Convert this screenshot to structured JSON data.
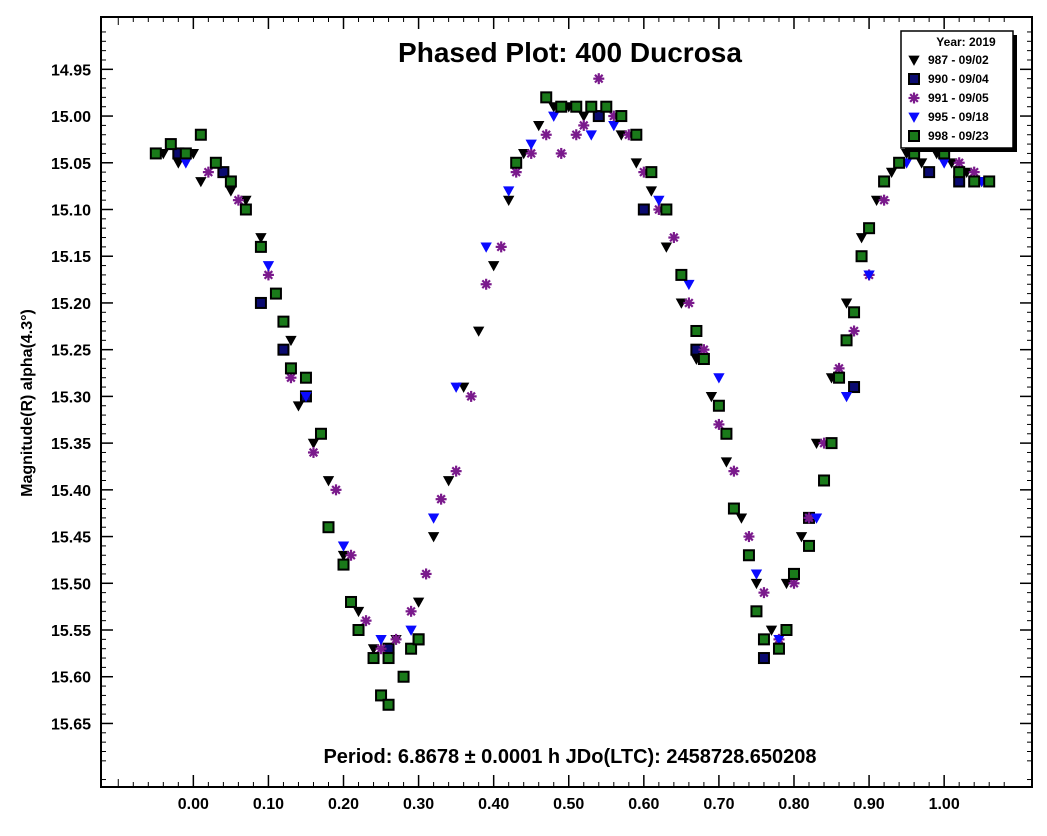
{
  "chart_data": {
    "type": "scatter",
    "title": "Phased Plot: 400 Ducrosa",
    "ylabel": "Magnitude(R) alpha(4.3°)",
    "xlabel": "",
    "footer": "Period: 6.8678 ± 0.0001 h  JDo(LTC): 2458728.650208",
    "xlim": [
      -0.123,
      1.117
    ],
    "ylim": [
      15.718,
      14.894
    ],
    "y_inverted": true,
    "x_ticks": [
      "0.00",
      "0.10",
      "0.20",
      "0.30",
      "0.40",
      "0.50",
      "0.60",
      "0.70",
      "0.80",
      "0.90",
      "1.00"
    ],
    "x_tick_values": [
      0,
      0.1,
      0.2,
      0.3,
      0.4,
      0.5,
      0.6,
      0.7,
      0.8,
      0.9,
      1.0
    ],
    "y_ticks": [
      "14.95",
      "15.00",
      "15.05",
      "15.10",
      "15.15",
      "15.20",
      "15.25",
      "15.30",
      "15.35",
      "15.40",
      "15.45",
      "15.50",
      "15.55",
      "15.60",
      "15.65"
    ],
    "y_tick_values": [
      14.95,
      15.0,
      15.05,
      15.1,
      15.15,
      15.2,
      15.25,
      15.3,
      15.35,
      15.4,
      15.45,
      15.5,
      15.55,
      15.6,
      15.65
    ],
    "legend": {
      "title": "Year: 2019",
      "placement": "top-right"
    },
    "series": [
      {
        "name": "987 - 09/02",
        "marker": "triangle-down",
        "color": "#000000",
        "points": [
          [
            -0.04,
            15.04
          ],
          [
            -0.03,
            15.03
          ],
          [
            -0.02,
            15.05
          ],
          [
            0.0,
            15.04
          ],
          [
            0.01,
            15.07
          ],
          [
            0.03,
            15.05
          ],
          [
            0.05,
            15.08
          ],
          [
            0.07,
            15.09
          ],
          [
            0.09,
            15.13
          ],
          [
            0.11,
            15.19
          ],
          [
            0.13,
            15.24
          ],
          [
            0.14,
            15.31
          ],
          [
            0.16,
            15.35
          ],
          [
            0.18,
            15.39
          ],
          [
            0.2,
            15.47
          ],
          [
            0.22,
            15.53
          ],
          [
            0.24,
            15.57
          ],
          [
            0.26,
            15.58
          ],
          [
            0.27,
            15.56
          ],
          [
            0.3,
            15.52
          ],
          [
            0.32,
            15.45
          ],
          [
            0.34,
            15.39
          ],
          [
            0.36,
            15.29
          ],
          [
            0.38,
            15.23
          ],
          [
            0.4,
            15.16
          ],
          [
            0.42,
            15.09
          ],
          [
            0.44,
            15.04
          ],
          [
            0.46,
            15.01
          ],
          [
            0.48,
            14.99
          ],
          [
            0.5,
            14.99
          ],
          [
            0.52,
            15.0
          ],
          [
            0.55,
            14.99
          ],
          [
            0.57,
            15.02
          ],
          [
            0.59,
            15.05
          ],
          [
            0.61,
            15.08
          ],
          [
            0.63,
            15.14
          ],
          [
            0.65,
            15.2
          ],
          [
            0.67,
            15.26
          ],
          [
            0.69,
            15.3
          ],
          [
            0.71,
            15.37
          ],
          [
            0.73,
            15.43
          ],
          [
            0.75,
            15.5
          ],
          [
            0.77,
            15.55
          ],
          [
            0.79,
            15.5
          ],
          [
            0.81,
            15.45
          ],
          [
            0.83,
            15.35
          ],
          [
            0.85,
            15.28
          ],
          [
            0.87,
            15.2
          ],
          [
            0.89,
            15.13
          ],
          [
            0.91,
            15.09
          ],
          [
            0.93,
            15.06
          ],
          [
            0.95,
            15.04
          ],
          [
            0.97,
            15.05
          ],
          [
            0.99,
            15.04
          ],
          [
            1.01,
            15.05
          ],
          [
            1.03,
            15.06
          ],
          [
            1.05,
            15.07
          ]
        ]
      },
      {
        "name": "990 - 09/04",
        "marker": "square",
        "color": "#0a0a70",
        "points": [
          [
            -0.02,
            15.04
          ],
          [
            0.04,
            15.06
          ],
          [
            0.09,
            15.2
          ],
          [
            0.12,
            15.25
          ],
          [
            0.15,
            15.3
          ],
          [
            0.26,
            15.57
          ],
          [
            0.3,
            15.56
          ],
          [
            0.54,
            15.0
          ],
          [
            0.6,
            15.1
          ],
          [
            0.67,
            15.25
          ],
          [
            0.76,
            15.58
          ],
          [
            0.8,
            15.49
          ],
          [
            0.82,
            15.43
          ],
          [
            0.88,
            15.29
          ],
          [
            0.98,
            15.06
          ],
          [
            1.02,
            15.07
          ]
        ]
      },
      {
        "name": "991 - 09/05",
        "marker": "asterisk",
        "color": "#7a1a8c",
        "points": [
          [
            0.02,
            15.06
          ],
          [
            0.06,
            15.09
          ],
          [
            0.1,
            15.17
          ],
          [
            0.13,
            15.28
          ],
          [
            0.16,
            15.36
          ],
          [
            0.19,
            15.4
          ],
          [
            0.21,
            15.47
          ],
          [
            0.23,
            15.54
          ],
          [
            0.25,
            15.57
          ],
          [
            0.27,
            15.56
          ],
          [
            0.29,
            15.53
          ],
          [
            0.31,
            15.49
          ],
          [
            0.33,
            15.41
          ],
          [
            0.35,
            15.38
          ],
          [
            0.37,
            15.3
          ],
          [
            0.39,
            15.18
          ],
          [
            0.41,
            15.14
          ],
          [
            0.43,
            15.06
          ],
          [
            0.45,
            15.04
          ],
          [
            0.47,
            15.02
          ],
          [
            0.49,
            15.04
          ],
          [
            0.51,
            15.02
          ],
          [
            0.52,
            15.01
          ],
          [
            0.54,
            14.96
          ],
          [
            0.56,
            15.0
          ],
          [
            0.58,
            15.02
          ],
          [
            0.6,
            15.06
          ],
          [
            0.62,
            15.1
          ],
          [
            0.64,
            15.13
          ],
          [
            0.66,
            15.2
          ],
          [
            0.68,
            15.25
          ],
          [
            0.7,
            15.33
          ],
          [
            0.72,
            15.38
          ],
          [
            0.74,
            15.45
          ],
          [
            0.76,
            15.51
          ],
          [
            0.78,
            15.56
          ],
          [
            0.8,
            15.5
          ],
          [
            0.82,
            15.43
          ],
          [
            0.84,
            15.35
          ],
          [
            0.86,
            15.27
          ],
          [
            0.88,
            15.23
          ],
          [
            0.9,
            15.17
          ],
          [
            0.92,
            15.09
          ],
          [
            0.94,
            15.05
          ],
          [
            0.96,
            15.04
          ],
          [
            0.98,
            15.03
          ],
          [
            1.0,
            15.04
          ],
          [
            1.02,
            15.05
          ],
          [
            1.04,
            15.06
          ]
        ]
      },
      {
        "name": "995 - 09/18",
        "marker": "triangle-down",
        "color": "#0a0aff",
        "points": [
          [
            -0.01,
            15.05
          ],
          [
            0.05,
            15.07
          ],
          [
            0.1,
            15.16
          ],
          [
            0.15,
            15.3
          ],
          [
            0.2,
            15.46
          ],
          [
            0.25,
            15.56
          ],
          [
            0.29,
            15.55
          ],
          [
            0.32,
            15.43
          ],
          [
            0.35,
            15.29
          ],
          [
            0.39,
            15.14
          ],
          [
            0.42,
            15.08
          ],
          [
            0.45,
            15.03
          ],
          [
            0.48,
            15.0
          ],
          [
            0.53,
            15.02
          ],
          [
            0.56,
            15.01
          ],
          [
            0.62,
            15.09
          ],
          [
            0.66,
            15.18
          ],
          [
            0.7,
            15.28
          ],
          [
            0.75,
            15.49
          ],
          [
            0.78,
            15.56
          ],
          [
            0.83,
            15.43
          ],
          [
            0.87,
            15.3
          ],
          [
            0.9,
            15.17
          ],
          [
            0.95,
            15.05
          ],
          [
            1.0,
            15.05
          ],
          [
            1.05,
            15.07
          ]
        ]
      },
      {
        "name": "998 - 09/23",
        "marker": "square",
        "color": "#1a7a1a",
        "points": [
          [
            -0.05,
            15.04
          ],
          [
            -0.03,
            15.03
          ],
          [
            -0.01,
            15.04
          ],
          [
            0.01,
            15.02
          ],
          [
            0.03,
            15.05
          ],
          [
            0.05,
            15.07
          ],
          [
            0.07,
            15.1
          ],
          [
            0.09,
            15.14
          ],
          [
            0.11,
            15.19
          ],
          [
            0.12,
            15.22
          ],
          [
            0.13,
            15.27
          ],
          [
            0.15,
            15.28
          ],
          [
            0.17,
            15.34
          ],
          [
            0.18,
            15.44
          ],
          [
            0.2,
            15.48
          ],
          [
            0.21,
            15.52
          ],
          [
            0.22,
            15.55
          ],
          [
            0.24,
            15.58
          ],
          [
            0.25,
            15.62
          ],
          [
            0.26,
            15.58
          ],
          [
            0.26,
            15.63
          ],
          [
            0.28,
            15.6
          ],
          [
            0.29,
            15.57
          ],
          [
            0.3,
            15.56
          ],
          [
            0.43,
            15.05
          ],
          [
            0.47,
            14.98
          ],
          [
            0.49,
            14.99
          ],
          [
            0.51,
            14.99
          ],
          [
            0.53,
            14.99
          ],
          [
            0.55,
            14.99
          ],
          [
            0.57,
            15.0
          ],
          [
            0.59,
            15.02
          ],
          [
            0.61,
            15.06
          ],
          [
            0.63,
            15.1
          ],
          [
            0.65,
            15.17
          ],
          [
            0.67,
            15.23
          ],
          [
            0.68,
            15.26
          ],
          [
            0.7,
            15.31
          ],
          [
            0.71,
            15.34
          ],
          [
            0.72,
            15.42
          ],
          [
            0.74,
            15.47
          ],
          [
            0.75,
            15.53
          ],
          [
            0.76,
            15.56
          ],
          [
            0.78,
            15.57
          ],
          [
            0.79,
            15.55
          ],
          [
            0.8,
            15.49
          ],
          [
            0.82,
            15.46
          ],
          [
            0.84,
            15.39
          ],
          [
            0.85,
            15.35
          ],
          [
            0.86,
            15.28
          ],
          [
            0.87,
            15.24
          ],
          [
            0.88,
            15.21
          ],
          [
            0.89,
            15.15
          ],
          [
            0.9,
            15.12
          ],
          [
            0.92,
            15.07
          ],
          [
            0.94,
            15.05
          ],
          [
            0.96,
            15.04
          ],
          [
            0.98,
            15.03
          ],
          [
            1.0,
            15.04
          ],
          [
            1.02,
            15.06
          ],
          [
            1.04,
            15.07
          ],
          [
            1.06,
            15.07
          ]
        ]
      }
    ]
  }
}
